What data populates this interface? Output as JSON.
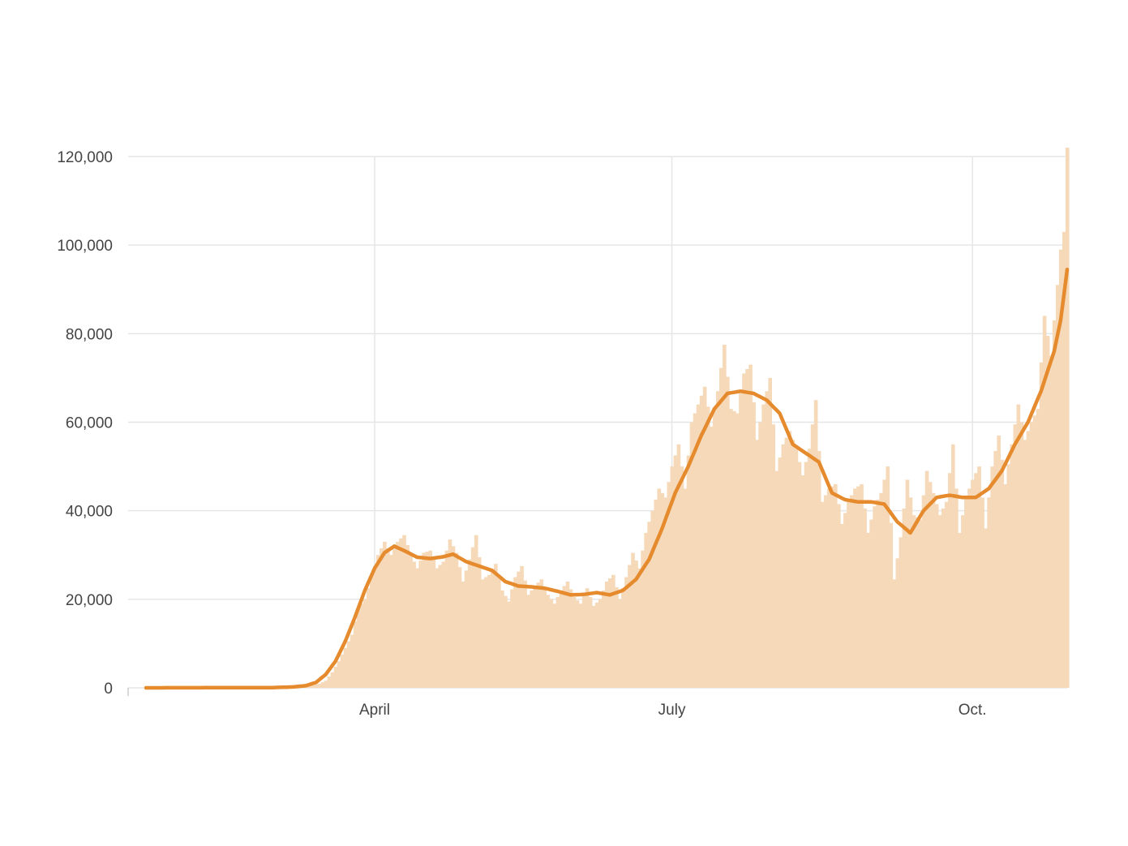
{
  "chart_data": {
    "type": "bar",
    "title": "",
    "xlabel": "",
    "ylabel": "",
    "x_start": "2020-01-22",
    "x_end": "2020-10-30",
    "ylim": [
      0,
      120000
    ],
    "y_ticks": [
      0,
      20000,
      40000,
      60000,
      80000,
      100000,
      120000
    ],
    "y_tick_labels": [
      "0",
      "20,000",
      "40,000",
      "60,000",
      "80,000",
      "100,000",
      "120,000"
    ],
    "x_ticks": [
      {
        "date": "2020-04-01",
        "label": "April"
      },
      {
        "date": "2020-07-01",
        "label": "July"
      },
      {
        "date": "2020-10-01",
        "label": "Oct."
      }
    ],
    "grid": true,
    "colors": {
      "bars": "#f5d9b8",
      "average_line": "#e68a2e",
      "grid": "#e6e6e6",
      "axis_text": "#444444"
    },
    "series": [
      {
        "kind": "daily_bars",
        "points": [
          [
            "2020-01-22",
            0
          ],
          [
            "2020-03-01",
            20
          ],
          [
            "2020-03-05",
            60
          ],
          [
            "2020-03-09",
            150
          ],
          [
            "2020-03-12",
            400
          ],
          [
            "2020-03-15",
            900
          ],
          [
            "2020-03-17",
            1600
          ],
          [
            "2020-03-19",
            3500
          ],
          [
            "2020-03-21",
            6000
          ],
          [
            "2020-03-23",
            9000
          ],
          [
            "2020-03-25",
            12000
          ],
          [
            "2020-03-27",
            18000
          ],
          [
            "2020-03-29",
            20000
          ],
          [
            "2020-03-31",
            25000
          ],
          [
            "2020-04-02",
            30000
          ],
          [
            "2020-04-04",
            33000
          ],
          [
            "2020-04-06",
            30000
          ],
          [
            "2020-04-08",
            33000
          ],
          [
            "2020-04-10",
            34500
          ],
          [
            "2020-04-12",
            30000
          ],
          [
            "2020-04-14",
            27000
          ],
          [
            "2020-04-16",
            30500
          ],
          [
            "2020-04-18",
            31000
          ],
          [
            "2020-04-20",
            27000
          ],
          [
            "2020-04-22",
            28500
          ],
          [
            "2020-04-24",
            33500
          ],
          [
            "2020-04-26",
            30500
          ],
          [
            "2020-04-28",
            24000
          ],
          [
            "2020-04-30",
            29000
          ],
          [
            "2020-05-02",
            34500
          ],
          [
            "2020-05-04",
            24500
          ],
          [
            "2020-05-06",
            25500
          ],
          [
            "2020-05-08",
            28000
          ],
          [
            "2020-05-10",
            22000
          ],
          [
            "2020-05-12",
            19500
          ],
          [
            "2020-05-14",
            25000
          ],
          [
            "2020-05-16",
            27500
          ],
          [
            "2020-05-18",
            21000
          ],
          [
            "2020-05-20",
            23000
          ],
          [
            "2020-05-22",
            24500
          ],
          [
            "2020-05-24",
            21000
          ],
          [
            "2020-05-26",
            19000
          ],
          [
            "2020-05-28",
            22000
          ],
          [
            "2020-05-30",
            24000
          ],
          [
            "2020-06-01",
            20500
          ],
          [
            "2020-06-03",
            19000
          ],
          [
            "2020-06-05",
            22500
          ],
          [
            "2020-06-07",
            18500
          ],
          [
            "2020-06-09",
            20000
          ],
          [
            "2020-06-11",
            24000
          ],
          [
            "2020-06-13",
            25500
          ],
          [
            "2020-06-15",
            20000
          ],
          [
            "2020-06-17",
            25000
          ],
          [
            "2020-06-19",
            30500
          ],
          [
            "2020-06-21",
            27000
          ],
          [
            "2020-06-23",
            35000
          ],
          [
            "2020-06-25",
            40000
          ],
          [
            "2020-06-27",
            45000
          ],
          [
            "2020-06-29",
            43000
          ],
          [
            "2020-07-01",
            50000
          ],
          [
            "2020-07-03",
            55000
          ],
          [
            "2020-07-05",
            45000
          ],
          [
            "2020-07-07",
            60000
          ],
          [
            "2020-07-09",
            64000
          ],
          [
            "2020-07-11",
            68000
          ],
          [
            "2020-07-13",
            59000
          ],
          [
            "2020-07-15",
            67000
          ],
          [
            "2020-07-17",
            77500
          ],
          [
            "2020-07-19",
            63000
          ],
          [
            "2020-07-21",
            62000
          ],
          [
            "2020-07-23",
            71000
          ],
          [
            "2020-07-25",
            73000
          ],
          [
            "2020-07-27",
            56000
          ],
          [
            "2020-07-29",
            64000
          ],
          [
            "2020-07-31",
            70000
          ],
          [
            "2020-08-02",
            49000
          ],
          [
            "2020-08-04",
            55000
          ],
          [
            "2020-08-06",
            58000
          ],
          [
            "2020-08-08",
            54000
          ],
          [
            "2020-08-10",
            48000
          ],
          [
            "2020-08-12",
            54000
          ],
          [
            "2020-08-14",
            65000
          ],
          [
            "2020-08-16",
            42000
          ],
          [
            "2020-08-18",
            45000
          ],
          [
            "2020-08-20",
            46000
          ],
          [
            "2020-08-22",
            37000
          ],
          [
            "2020-08-24",
            42000
          ],
          [
            "2020-08-26",
            45000
          ],
          [
            "2020-08-28",
            46000
          ],
          [
            "2020-08-30",
            35000
          ],
          [
            "2020-09-01",
            41000
          ],
          [
            "2020-09-03",
            44000
          ],
          [
            "2020-09-05",
            50000
          ],
          [
            "2020-09-07",
            24500
          ],
          [
            "2020-09-09",
            34000
          ],
          [
            "2020-09-11",
            47000
          ],
          [
            "2020-09-13",
            39000
          ],
          [
            "2020-09-15",
            38000
          ],
          [
            "2020-09-17",
            49000
          ],
          [
            "2020-09-19",
            44000
          ],
          [
            "2020-09-21",
            39000
          ],
          [
            "2020-09-23",
            42000
          ],
          [
            "2020-09-25",
            55000
          ],
          [
            "2020-09-27",
            35000
          ],
          [
            "2020-09-29",
            43000
          ],
          [
            "2020-10-01",
            47000
          ],
          [
            "2020-10-03",
            50000
          ],
          [
            "2020-10-05",
            36000
          ],
          [
            "2020-10-07",
            50000
          ],
          [
            "2020-10-09",
            57000
          ],
          [
            "2020-10-11",
            46000
          ],
          [
            "2020-10-13",
            55000
          ],
          [
            "2020-10-15",
            64000
          ],
          [
            "2020-10-17",
            56000
          ],
          [
            "2020-10-19",
            60000
          ],
          [
            "2020-10-21",
            63000
          ],
          [
            "2020-10-23",
            84000
          ],
          [
            "2020-10-25",
            75000
          ],
          [
            "2020-10-27",
            91000
          ],
          [
            "2020-10-28",
            99000
          ],
          [
            "2020-10-29",
            103000
          ],
          [
            "2020-10-30",
            122000
          ]
        ]
      },
      {
        "kind": "7-day_average_line",
        "points": [
          [
            "2020-01-22",
            0
          ],
          [
            "2020-03-01",
            60
          ],
          [
            "2020-03-07",
            200
          ],
          [
            "2020-03-11",
            500
          ],
          [
            "2020-03-14",
            1200
          ],
          [
            "2020-03-17",
            3000
          ],
          [
            "2020-03-20",
            6000
          ],
          [
            "2020-03-23",
            10500
          ],
          [
            "2020-03-26",
            16000
          ],
          [
            "2020-03-29",
            22000
          ],
          [
            "2020-04-01",
            27000
          ],
          [
            "2020-04-04",
            30500
          ],
          [
            "2020-04-07",
            32000
          ],
          [
            "2020-04-10",
            31000
          ],
          [
            "2020-04-14",
            29500
          ],
          [
            "2020-04-18",
            29200
          ],
          [
            "2020-04-22",
            29600
          ],
          [
            "2020-04-25",
            30200
          ],
          [
            "2020-04-29",
            28500
          ],
          [
            "2020-05-03",
            27500
          ],
          [
            "2020-05-07",
            26500
          ],
          [
            "2020-05-11",
            24000
          ],
          [
            "2020-05-15",
            23000
          ],
          [
            "2020-05-19",
            22800
          ],
          [
            "2020-05-23",
            22500
          ],
          [
            "2020-05-27",
            21800
          ],
          [
            "2020-05-31",
            21000
          ],
          [
            "2020-06-04",
            21100
          ],
          [
            "2020-06-08",
            21500
          ],
          [
            "2020-06-12",
            21000
          ],
          [
            "2020-06-16",
            22000
          ],
          [
            "2020-06-20",
            24500
          ],
          [
            "2020-06-24",
            29000
          ],
          [
            "2020-06-28",
            36000
          ],
          [
            "2020-07-02",
            44000
          ],
          [
            "2020-07-06",
            50000
          ],
          [
            "2020-07-10",
            57000
          ],
          [
            "2020-07-14",
            63000
          ],
          [
            "2020-07-18",
            66500
          ],
          [
            "2020-07-22",
            67000
          ],
          [
            "2020-07-26",
            66500
          ],
          [
            "2020-07-30",
            65000
          ],
          [
            "2020-08-03",
            62000
          ],
          [
            "2020-08-07",
            55000
          ],
          [
            "2020-08-11",
            53000
          ],
          [
            "2020-08-15",
            51000
          ],
          [
            "2020-08-19",
            44000
          ],
          [
            "2020-08-23",
            42500
          ],
          [
            "2020-08-27",
            42000
          ],
          [
            "2020-08-31",
            42000
          ],
          [
            "2020-09-04",
            41500
          ],
          [
            "2020-09-08",
            37500
          ],
          [
            "2020-09-12",
            35000
          ],
          [
            "2020-09-16",
            40000
          ],
          [
            "2020-09-20",
            43000
          ],
          [
            "2020-09-24",
            43500
          ],
          [
            "2020-09-28",
            43000
          ],
          [
            "2020-10-02",
            43000
          ],
          [
            "2020-10-06",
            45000
          ],
          [
            "2020-10-10",
            49000
          ],
          [
            "2020-10-14",
            55000
          ],
          [
            "2020-10-18",
            60000
          ],
          [
            "2020-10-22",
            67000
          ],
          [
            "2020-10-26",
            76000
          ],
          [
            "2020-10-28",
            83000
          ],
          [
            "2020-10-30",
            94500
          ]
        ]
      }
    ]
  }
}
